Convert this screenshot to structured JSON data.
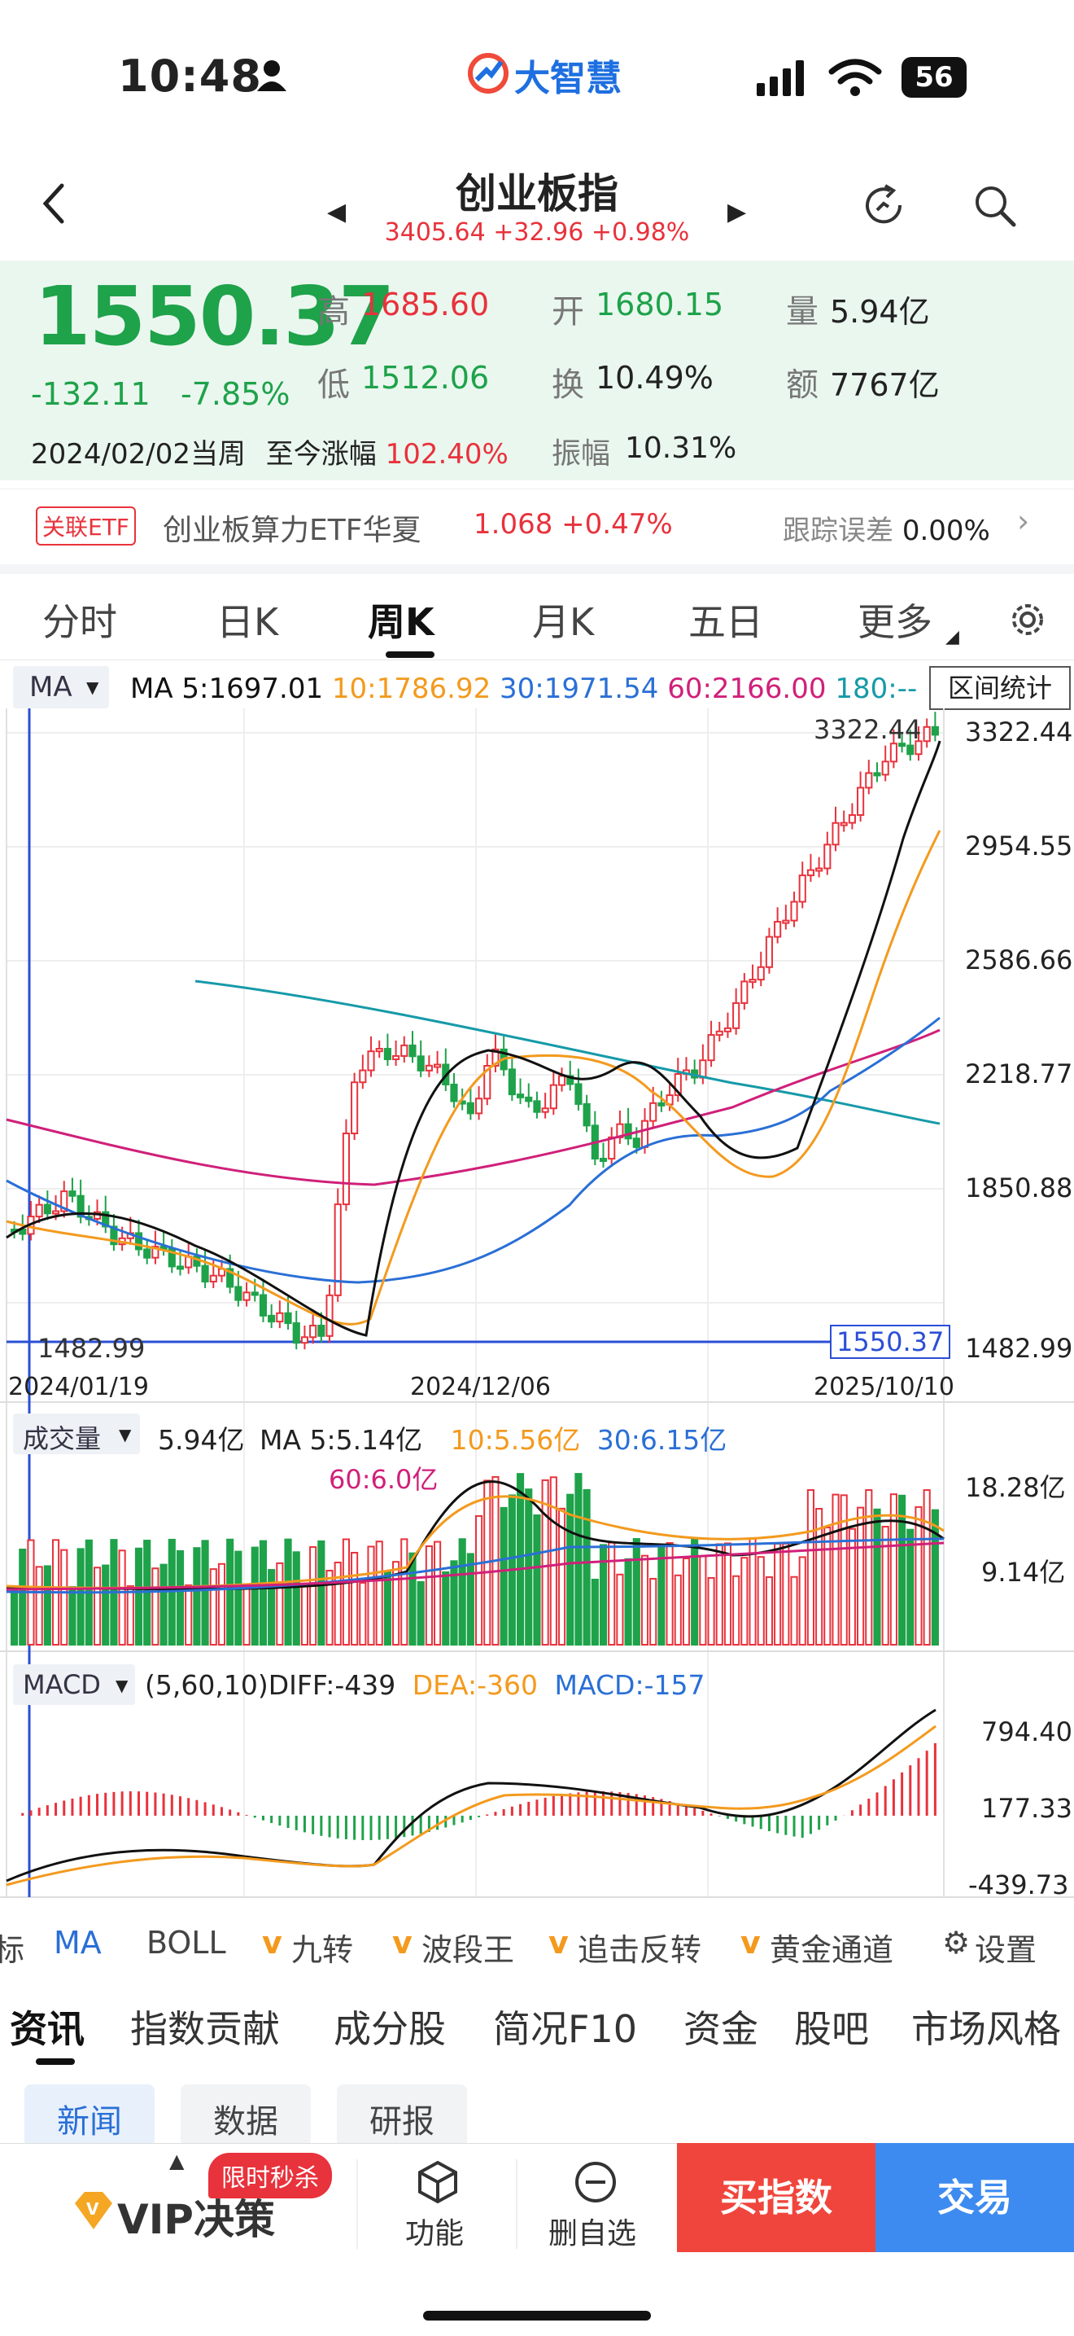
{
  "status": {
    "time": "10:48",
    "battery": "56",
    "brand": "大智慧"
  },
  "header": {
    "title": "创业板指",
    "sub_price": "3405.64",
    "sub_change": "+32.96",
    "sub_pct": "+0.98%"
  },
  "quote": {
    "price": "1550.37",
    "change": "-132.11",
    "change_pct": "-7.85%",
    "high_label": "高",
    "high": "1685.60",
    "low_label": "低",
    "low": "1512.06",
    "open_label": "开",
    "open": "1680.15",
    "turnover_label": "换",
    "turnover": "10.49%",
    "amplitude_label": "振幅",
    "amplitude": "10.31%",
    "vol_label": "量",
    "vol": "5.94亿",
    "amount_label": "额",
    "amount": "7767亿",
    "date_line": "2024/02/02当周",
    "since_label": "至今涨幅",
    "since_value": "102.40%"
  },
  "etf": {
    "tag": "关联ETF",
    "name": "创业板算力ETF华夏",
    "price": "1.068",
    "pct": "+0.47%",
    "track_label": "跟踪误差",
    "track_value": "0.00%"
  },
  "tabs": [
    "分时",
    "日K",
    "周K",
    "月K",
    "五日",
    "更多"
  ],
  "active_tab": "周K",
  "ma_bar": {
    "select": "MA",
    "ma5": "MA 5:1697.01",
    "ma10": "10:1786.92",
    "ma30": "30:1971.54",
    "ma60": "60:2166.00",
    "ma180": "180:--",
    "range_btn": "区间统计"
  },
  "price_axis": [
    "3322.44",
    "2954.55",
    "2586.66",
    "2218.77",
    "1850.88",
    "1482.99"
  ],
  "price_labels": {
    "high_mark": "3322.44",
    "low_mark": "1482.99",
    "current": "1550.37"
  },
  "date_axis": [
    "2024/01/19",
    "2024/12/06",
    "2025/10/10"
  ],
  "vol_bar": {
    "select": "成交量",
    "vol": "5.94亿",
    "ma5": "MA 5:5.14亿",
    "ma10": "10:5.56亿",
    "ma30": "30:6.15亿",
    "ma60": "60:6.0亿"
  },
  "vol_axis": [
    "18.28亿",
    "9.14亿"
  ],
  "macd_bar": {
    "select": "MACD",
    "params": "(5,60,10)DIFF:-439",
    "dea": "DEA:-360",
    "macd": "MACD:-157"
  },
  "macd_axis": [
    "794.40",
    "177.33",
    "-439.73"
  ],
  "indicator_tabs": [
    "标",
    "MA",
    "BOLL",
    "九转",
    "波段王",
    "追击反转",
    "黄金通道",
    "设置"
  ],
  "section_tabs": [
    "资讯",
    "指数贡献",
    "成分股",
    "简况F10",
    "资金",
    "股吧",
    "市场风格"
  ],
  "sub_tabs": [
    "新闻",
    "数据",
    "研报"
  ],
  "bottom": {
    "vip": "VIP决策",
    "promo": "限时秒杀",
    "func": "功能",
    "remove": "删自选",
    "buy": "买指数",
    "trade": "交易"
  },
  "colors": {
    "up": "#e8323c",
    "down": "#1ea24a",
    "ma5": "#111111",
    "ma10": "#f39a1e",
    "ma30": "#2a6fd6",
    "ma60": "#d0207a",
    "ma180": "#169aa8"
  }
}
